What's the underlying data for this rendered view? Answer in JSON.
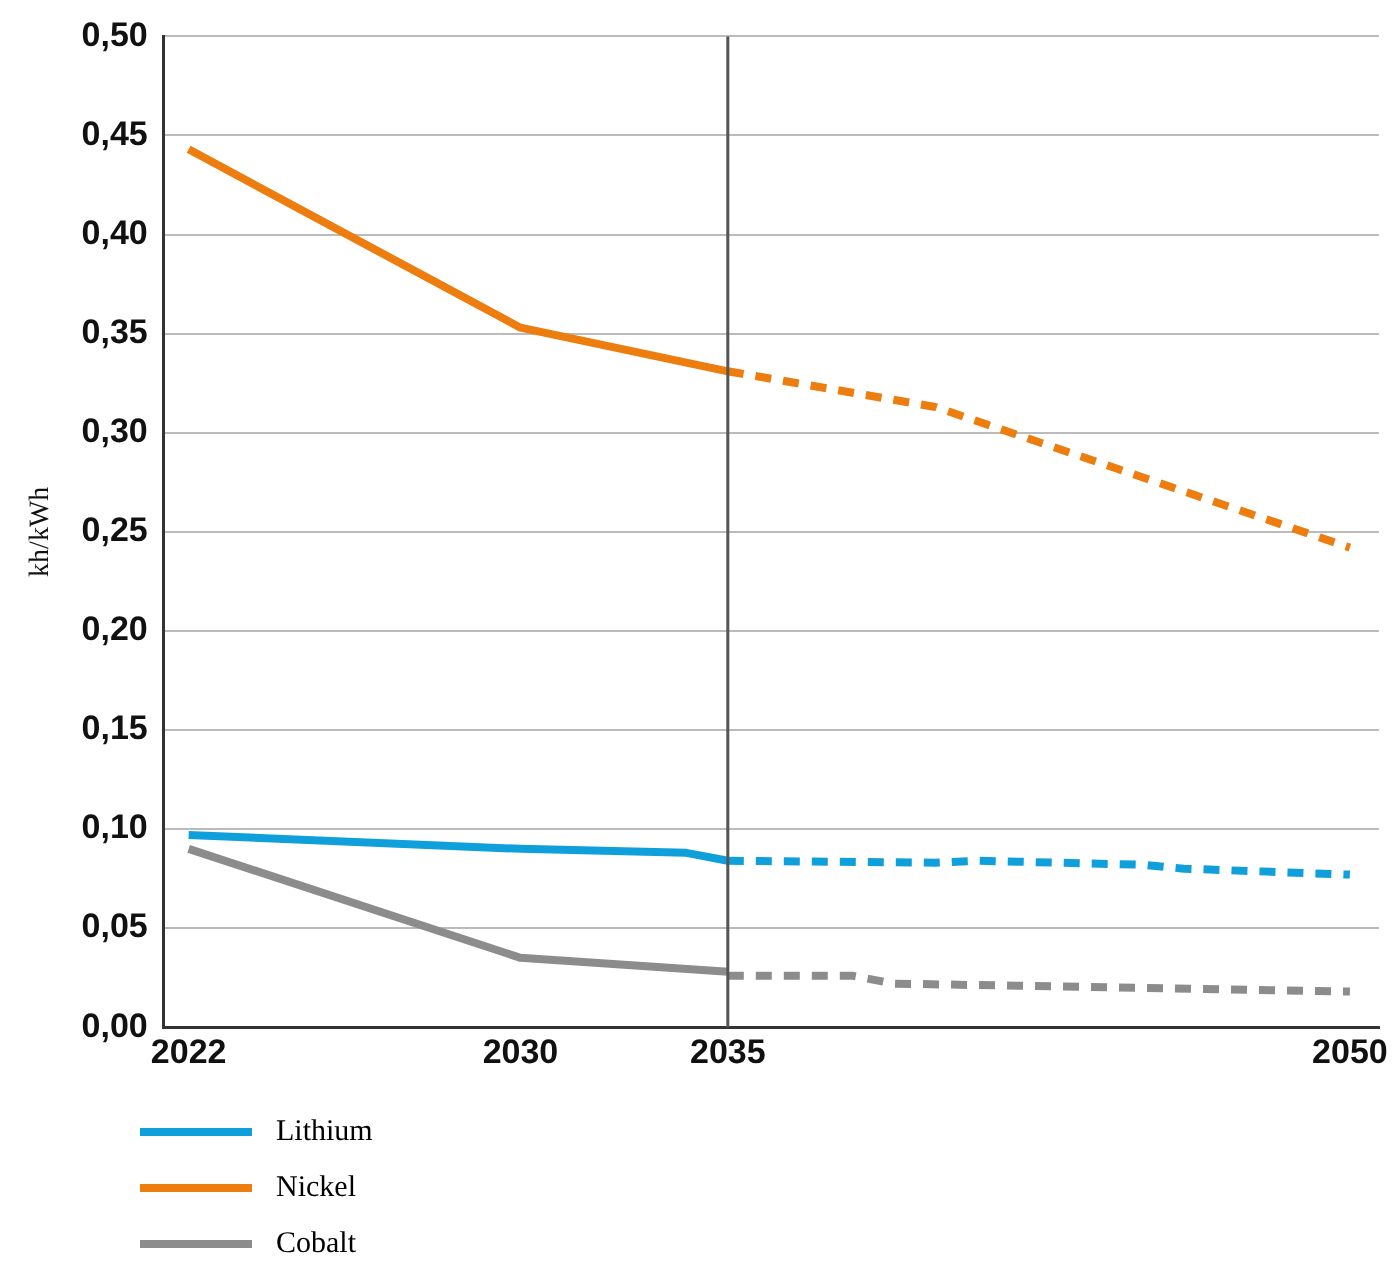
{
  "chart_data": {
    "type": "line",
    "ylabel": "kh/kWh",
    "xlim": [
      2021.4,
      2050.7
    ],
    "xticks": [
      2022,
      2030,
      2035,
      2050
    ],
    "ylim": [
      0,
      0.5
    ],
    "yticks": [
      {
        "value": 0,
        "label": "0,00"
      },
      {
        "value": 0.05,
        "label": "0,05"
      },
      {
        "value": 0.1,
        "label": "0,10"
      },
      {
        "value": 0.15,
        "label": "0,15"
      },
      {
        "value": 0.2,
        "label": "0,20"
      },
      {
        "value": 0.25,
        "label": "0,25"
      },
      {
        "value": 0.3,
        "label": "0,30"
      },
      {
        "value": 0.35,
        "label": "0,35"
      },
      {
        "value": 0.4,
        "label": "0,40"
      },
      {
        "value": 0.45,
        "label": "0,45"
      },
      {
        "value": 0.5,
        "label": "0,50"
      }
    ],
    "grid": "y",
    "legend": "bottom left",
    "marker": "none",
    "ref_lines": [
      {
        "axis": "x",
        "value": 2035,
        "color": "#555555"
      }
    ],
    "series": [
      {
        "name": "Lithium",
        "color": "#0fa0dc",
        "line_style": "solid",
        "x": [
          2022,
          2030,
          2034,
          2035
        ],
        "values": [
          0.097,
          0.09,
          0.088,
          0.084
        ]
      },
      {
        "name": "Nickel",
        "color": "#ec7d0e",
        "line_style": "solid",
        "x": [
          2022,
          2030,
          2035
        ],
        "values": [
          0.443,
          0.353,
          0.331
        ]
      },
      {
        "name": "Cobalt",
        "color": "#8c8c8c",
        "line_style": "solid",
        "x": [
          2022,
          2030,
          2035
        ],
        "values": [
          0.09,
          0.035,
          0.028
        ]
      },
      {
        "color": "#0fa0dc",
        "line_style": "dashed",
        "x": [
          2035,
          2040,
          2041,
          2045,
          2046,
          2050
        ],
        "values": [
          0.084,
          0.083,
          0.084,
          0.082,
          0.08,
          0.077
        ]
      },
      {
        "color": "#ec7d0e",
        "line_style": "dashed",
        "x": [
          2035,
          2040,
          2050
        ],
        "values": [
          0.331,
          0.313,
          0.242
        ]
      },
      {
        "color": "#8c8c8c",
        "line_style": "dashed",
        "x": [
          2035,
          2038,
          2039,
          2050
        ],
        "values": [
          0.026,
          0.026,
          0.022,
          0.018
        ]
      }
    ]
  }
}
